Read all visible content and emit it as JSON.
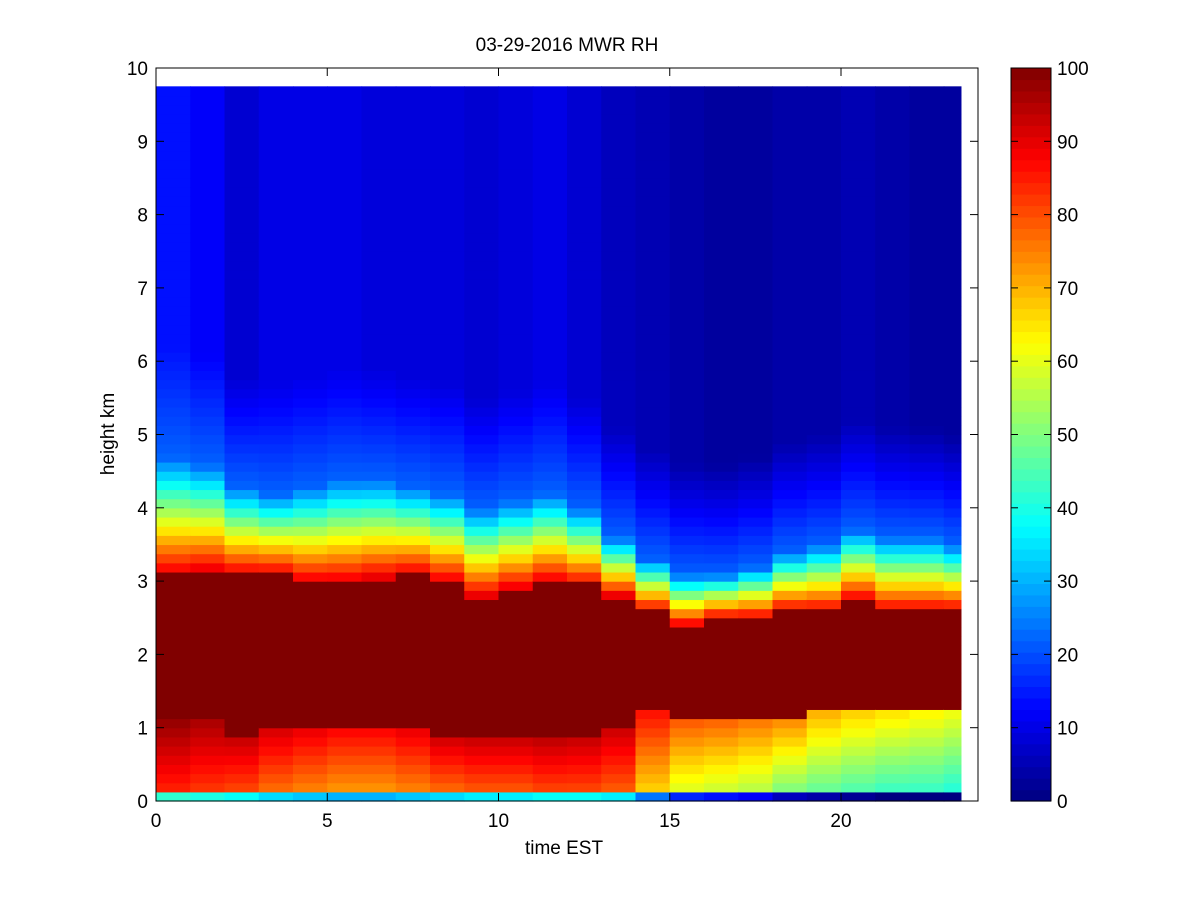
{
  "chart_data": {
    "type": "heatmap",
    "title": "03-29-2016 MWR RH",
    "xlabel": "time EST",
    "ylabel": "height km",
    "xlim": [
      0,
      24
    ],
    "ylim": [
      0,
      10
    ],
    "xticks": [
      0,
      5,
      10,
      15,
      20
    ],
    "yticks": [
      0,
      1,
      2,
      3,
      4,
      5,
      6,
      7,
      8,
      9,
      10
    ],
    "colorbar": {
      "label": "",
      "range": [
        0,
        100
      ],
      "ticks": [
        0,
        10,
        20,
        30,
        40,
        50,
        60,
        70,
        80,
        90,
        100
      ],
      "colormap": "jet"
    },
    "data_extent": {
      "time_hours": [
        0,
        23.5
      ],
      "height_km": [
        0,
        9.75
      ]
    },
    "time_hours": [
      0,
      1,
      2,
      3,
      4,
      5,
      6,
      7,
      8,
      9,
      10,
      11,
      12,
      13,
      14,
      15,
      16,
      17,
      18,
      19,
      20,
      21,
      22,
      23
    ],
    "profiles": [
      {
        "time": 0,
        "moist_top_km": 3.1,
        "moist_bottom_km": 1.1,
        "transition_top_km": 4.7,
        "surface_rh": 82,
        "lower_rh": 90,
        "upper_rh": 14
      },
      {
        "time": 1,
        "moist_top_km": 3.15,
        "moist_bottom_km": 1.1,
        "transition_top_km": 4.6,
        "surface_rh": 80,
        "lower_rh": 88,
        "upper_rh": 12
      },
      {
        "time": 2,
        "moist_top_km": 3.1,
        "moist_bottom_km": 0.9,
        "transition_top_km": 4.3,
        "surface_rh": 78,
        "lower_rh": 86,
        "upper_rh": 8
      },
      {
        "time": 3,
        "moist_top_km": 3.1,
        "moist_bottom_km": 1.0,
        "transition_top_km": 4.2,
        "surface_rh": 74,
        "lower_rh": 84,
        "upper_rh": 10
      },
      {
        "time": 4,
        "moist_top_km": 3.0,
        "moist_bottom_km": 1.0,
        "transition_top_km": 4.3,
        "surface_rh": 72,
        "lower_rh": 82,
        "upper_rh": 10
      },
      {
        "time": 5,
        "moist_top_km": 3.0,
        "moist_bottom_km": 1.0,
        "transition_top_km": 4.4,
        "surface_rh": 70,
        "lower_rh": 80,
        "upper_rh": 10
      },
      {
        "time": 6,
        "moist_top_km": 3.05,
        "moist_bottom_km": 1.0,
        "transition_top_km": 4.4,
        "surface_rh": 70,
        "lower_rh": 80,
        "upper_rh": 9
      },
      {
        "time": 7,
        "moist_top_km": 3.1,
        "moist_bottom_km": 1.0,
        "transition_top_km": 4.3,
        "surface_rh": 72,
        "lower_rh": 82,
        "upper_rh": 9
      },
      {
        "time": 8,
        "moist_top_km": 3.0,
        "moist_bottom_km": 0.85,
        "transition_top_km": 4.2,
        "surface_rh": 74,
        "lower_rh": 84,
        "upper_rh": 9
      },
      {
        "time": 9,
        "moist_top_km": 2.8,
        "moist_bottom_km": 0.85,
        "transition_top_km": 4.0,
        "surface_rh": 76,
        "lower_rh": 85,
        "upper_rh": 8
      },
      {
        "time": 10,
        "moist_top_km": 2.9,
        "moist_bottom_km": 0.9,
        "transition_top_km": 4.1,
        "surface_rh": 76,
        "lower_rh": 86,
        "upper_rh": 9
      },
      {
        "time": 11,
        "moist_top_km": 3.0,
        "moist_bottom_km": 0.85,
        "transition_top_km": 4.2,
        "surface_rh": 78,
        "lower_rh": 86,
        "upper_rh": 10
      },
      {
        "time": 12,
        "moist_top_km": 2.95,
        "moist_bottom_km": 0.9,
        "transition_top_km": 4.0,
        "surface_rh": 78,
        "lower_rh": 86,
        "upper_rh": 8
      },
      {
        "time": 13,
        "moist_top_km": 2.8,
        "moist_bottom_km": 1.0,
        "transition_top_km": 3.6,
        "surface_rh": 76,
        "lower_rh": 85,
        "upper_rh": 6
      },
      {
        "time": 14,
        "moist_top_km": 2.6,
        "moist_bottom_km": 1.2,
        "transition_top_km": 3.3,
        "surface_rh": 64,
        "lower_rh": 78,
        "upper_rh": 5
      },
      {
        "time": 15,
        "moist_top_km": 2.4,
        "moist_bottom_km": 1.15,
        "transition_top_km": 3.1,
        "surface_rh": 56,
        "lower_rh": 72,
        "upper_rh": 4
      },
      {
        "time": 16,
        "moist_top_km": 2.5,
        "moist_bottom_km": 1.1,
        "transition_top_km": 3.1,
        "surface_rh": 54,
        "lower_rh": 70,
        "upper_rh": 3
      },
      {
        "time": 17,
        "moist_top_km": 2.5,
        "moist_bottom_km": 1.1,
        "transition_top_km": 3.2,
        "surface_rh": 52,
        "lower_rh": 68,
        "upper_rh": 3
      },
      {
        "time": 18,
        "moist_top_km": 2.6,
        "moist_bottom_km": 1.1,
        "transition_top_km": 3.4,
        "surface_rh": 46,
        "lower_rh": 66,
        "upper_rh": 4
      },
      {
        "time": 19,
        "moist_top_km": 2.6,
        "moist_bottom_km": 1.2,
        "transition_top_km": 3.5,
        "surface_rh": 44,
        "lower_rh": 62,
        "upper_rh": 4
      },
      {
        "time": 20,
        "moist_top_km": 2.75,
        "moist_bottom_km": 1.25,
        "transition_top_km": 3.7,
        "surface_rh": 42,
        "lower_rh": 60,
        "upper_rh": 5
      },
      {
        "time": 21,
        "moist_top_km": 2.6,
        "moist_bottom_km": 1.25,
        "transition_top_km": 3.6,
        "surface_rh": 40,
        "lower_rh": 58,
        "upper_rh": 4
      },
      {
        "time": 22,
        "moist_top_km": 2.6,
        "moist_bottom_km": 1.25,
        "transition_top_km": 3.6,
        "surface_rh": 40,
        "lower_rh": 56,
        "upper_rh": 3
      },
      {
        "time": 23,
        "moist_top_km": 2.6,
        "moist_bottom_km": 1.25,
        "transition_top_km": 3.5,
        "surface_rh": 38,
        "lower_rh": 54,
        "upper_rh": 3
      }
    ]
  }
}
